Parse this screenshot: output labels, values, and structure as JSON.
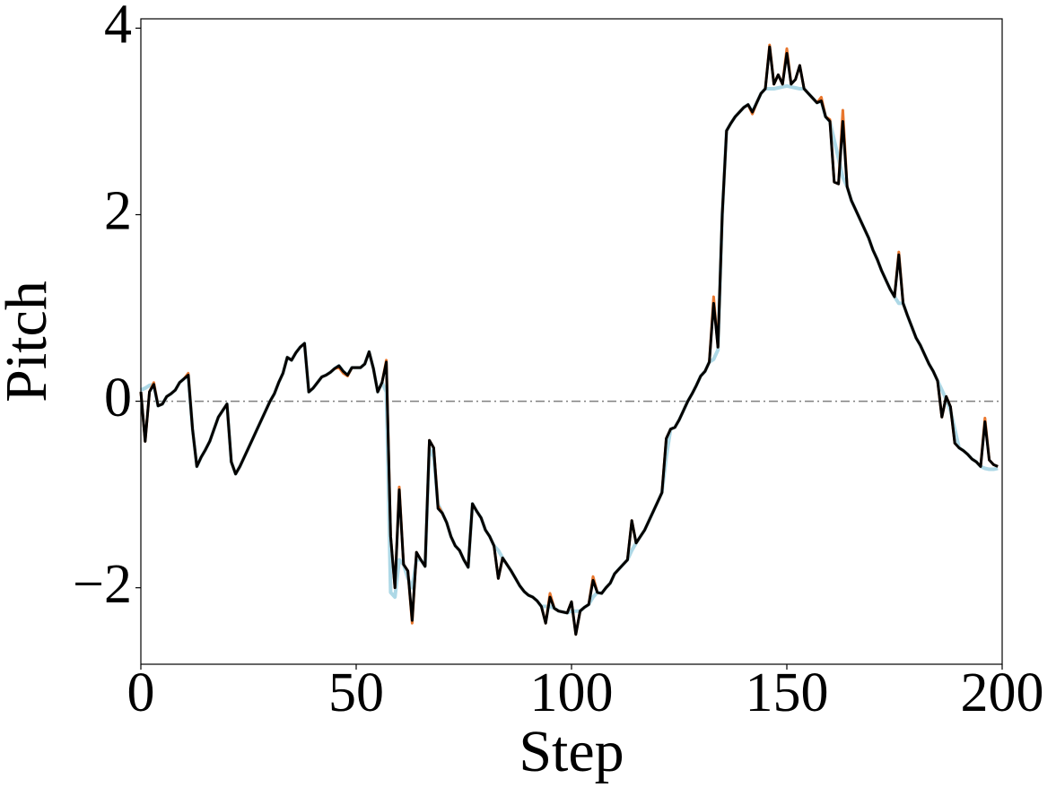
{
  "chart_data": {
    "type": "line",
    "xlabel": "Step",
    "ylabel": "Pitch",
    "x": [
      0,
      1,
      2,
      3,
      4,
      5,
      6,
      7,
      8,
      9,
      10,
      11,
      12,
      13,
      14,
      15,
      16,
      17,
      18,
      19,
      20,
      21,
      22,
      23,
      24,
      25,
      26,
      27,
      28,
      29,
      30,
      31,
      32,
      33,
      34,
      35,
      36,
      37,
      38,
      39,
      40,
      41,
      42,
      43,
      44,
      45,
      46,
      47,
      48,
      49,
      50,
      51,
      52,
      53,
      54,
      55,
      56,
      57,
      58,
      59,
      60,
      61,
      62,
      63,
      64,
      65,
      66,
      67,
      68,
      69,
      70,
      71,
      72,
      73,
      74,
      75,
      76,
      77,
      78,
      79,
      80,
      81,
      82,
      83,
      84,
      85,
      86,
      87,
      88,
      89,
      90,
      91,
      92,
      93,
      94,
      95,
      96,
      97,
      98,
      99,
      100,
      101,
      102,
      103,
      104,
      105,
      106,
      107,
      108,
      109,
      110,
      111,
      112,
      113,
      114,
      115,
      116,
      117,
      118,
      119,
      120,
      121,
      122,
      123,
      124,
      125,
      126,
      127,
      128,
      129,
      130,
      131,
      132,
      133,
      134,
      135,
      136,
      137,
      138,
      139,
      140,
      141,
      142,
      143,
      144,
      145,
      146,
      147,
      148,
      149,
      150,
      151,
      152,
      153,
      154,
      155,
      156,
      157,
      158,
      159,
      160,
      161,
      162,
      163,
      164,
      165,
      166,
      167,
      168,
      169,
      170,
      171,
      172,
      173,
      174,
      175,
      176,
      177,
      178,
      179,
      180,
      181,
      182,
      183,
      184,
      185,
      186,
      187,
      188,
      189,
      190,
      191,
      192,
      193,
      194,
      195,
      196,
      197,
      198,
      199
    ],
    "series": [
      {
        "color": "#add8e6",
        "values": [
          0.12,
          0.14,
          0.17,
          0.18,
          -0.05,
          -0.03,
          0.05,
          0.08,
          0.12,
          0.2,
          0.24,
          0.28,
          -0.3,
          -0.7,
          -0.6,
          -0.52,
          -0.43,
          -0.3,
          -0.17,
          -0.1,
          -0.03,
          -0.65,
          -0.78,
          -0.7,
          -0.6,
          -0.5,
          -0.4,
          -0.3,
          -0.2,
          -0.1,
          0.0,
          0.08,
          0.2,
          0.3,
          0.47,
          0.44,
          0.52,
          0.58,
          0.62,
          0.1,
          0.14,
          0.2,
          0.26,
          0.28,
          0.31,
          0.35,
          0.38,
          0.32,
          0.28,
          0.36,
          0.36,
          0.36,
          0.4,
          0.53,
          0.35,
          0.1,
          0.2,
          0.1,
          -2.05,
          -2.1,
          -1.7,
          -1.75,
          -1.9,
          -2.0,
          -1.7,
          -1.7,
          -1.77,
          -0.5,
          -0.6,
          -1.1,
          -1.2,
          -1.3,
          -1.45,
          -1.55,
          -1.6,
          -1.7,
          -1.78,
          -1.1,
          -1.18,
          -1.25,
          -1.38,
          -1.45,
          -1.55,
          -1.6,
          -1.68,
          -1.75,
          -1.82,
          -1.9,
          -1.98,
          -2.04,
          -2.08,
          -2.1,
          -2.14,
          -2.2,
          -2.2,
          -2.2,
          -2.22,
          -2.25,
          -2.26,
          -2.27,
          -2.25,
          -2.25,
          -2.25,
          -2.21,
          -2.18,
          -2.1,
          -2.05,
          -2.06,
          -2.0,
          -1.95,
          -1.85,
          -1.8,
          -1.75,
          -1.7,
          -1.6,
          -1.52,
          -1.45,
          -1.38,
          -1.28,
          -1.18,
          -1.08,
          -0.98,
          -0.6,
          -0.3,
          -0.28,
          -0.2,
          -0.1,
          0.0,
          0.08,
          0.17,
          0.27,
          0.32,
          0.42,
          0.45,
          0.55,
          2.0,
          2.9,
          2.98,
          3.05,
          3.1,
          3.15,
          3.18,
          3.1,
          3.2,
          3.3,
          3.35,
          3.35,
          3.35,
          3.36,
          3.37,
          3.38,
          3.37,
          3.36,
          3.35,
          3.35,
          3.3,
          3.25,
          3.2,
          3.22,
          3.05,
          3.0,
          2.8,
          2.6,
          2.4,
          2.3,
          2.15,
          2.05,
          1.95,
          1.85,
          1.75,
          1.62,
          1.52,
          1.4,
          1.3,
          1.2,
          1.12,
          1.05,
          1.05,
          0.92,
          0.8,
          0.68,
          0.6,
          0.5,
          0.4,
          0.32,
          0.22,
          0.12,
          0.02,
          -0.1,
          -0.3,
          -0.5,
          -0.53,
          -0.57,
          -0.62,
          -0.65,
          -0.7,
          -0.72,
          -0.73,
          -0.73,
          -0.72
        ]
      },
      {
        "color": "#e8762d",
        "values": [
          0.1,
          -0.43,
          0.1,
          0.2,
          -0.05,
          -0.03,
          0.05,
          0.08,
          0.12,
          0.2,
          0.24,
          0.3,
          -0.3,
          -0.7,
          -0.6,
          -0.52,
          -0.43,
          -0.3,
          -0.17,
          -0.1,
          -0.03,
          -0.65,
          -0.78,
          -0.7,
          -0.6,
          -0.5,
          -0.4,
          -0.3,
          -0.2,
          -0.1,
          0.0,
          0.08,
          0.2,
          0.3,
          0.47,
          0.44,
          0.52,
          0.58,
          0.62,
          0.1,
          0.14,
          0.2,
          0.26,
          0.28,
          0.31,
          0.35,
          0.36,
          0.3,
          0.27,
          0.36,
          0.36,
          0.36,
          0.4,
          0.53,
          0.35,
          0.1,
          0.2,
          0.44,
          -1.45,
          -2.0,
          -0.92,
          -1.75,
          -1.82,
          -2.38,
          -1.62,
          -1.7,
          -1.77,
          -0.42,
          -0.5,
          -1.12,
          -1.2,
          -1.3,
          -1.45,
          -1.55,
          -1.6,
          -1.7,
          -1.78,
          -1.1,
          -1.18,
          -1.25,
          -1.38,
          -1.45,
          -1.55,
          -1.9,
          -1.68,
          -1.75,
          -1.82,
          -1.9,
          -1.98,
          -2.04,
          -2.08,
          -2.1,
          -2.14,
          -2.2,
          -2.38,
          -2.06,
          -2.22,
          -2.25,
          -2.26,
          -2.27,
          -2.15,
          -2.5,
          -2.25,
          -2.21,
          -2.18,
          -1.88,
          -2.05,
          -2.06,
          -2.0,
          -1.95,
          -1.85,
          -1.8,
          -1.75,
          -1.7,
          -1.28,
          -1.52,
          -1.45,
          -1.38,
          -1.28,
          -1.18,
          -1.08,
          -0.98,
          -0.4,
          -0.3,
          -0.28,
          -0.2,
          -0.1,
          0.0,
          0.08,
          0.17,
          0.27,
          0.32,
          0.42,
          1.12,
          0.58,
          2.0,
          2.9,
          2.98,
          3.05,
          3.1,
          3.15,
          3.18,
          3.08,
          3.2,
          3.3,
          3.35,
          3.82,
          3.4,
          3.5,
          3.4,
          3.78,
          3.4,
          3.45,
          3.6,
          3.35,
          3.3,
          3.25,
          3.2,
          3.26,
          3.05,
          3.02,
          2.35,
          2.33,
          3.12,
          2.3,
          2.15,
          2.05,
          1.95,
          1.85,
          1.75,
          1.62,
          1.52,
          1.4,
          1.3,
          1.2,
          1.12,
          1.6,
          1.05,
          0.92,
          0.8,
          0.68,
          0.6,
          0.5,
          0.4,
          0.32,
          0.22,
          -0.17,
          0.05,
          -0.06,
          -0.45,
          -0.5,
          -0.53,
          -0.57,
          -0.62,
          -0.65,
          -0.7,
          -0.18,
          -0.63,
          -0.68,
          -0.7
        ]
      },
      {
        "color": "#000000",
        "values": [
          0.1,
          -0.43,
          0.1,
          0.18,
          -0.05,
          -0.03,
          0.05,
          0.08,
          0.12,
          0.2,
          0.24,
          0.28,
          -0.3,
          -0.7,
          -0.6,
          -0.52,
          -0.43,
          -0.3,
          -0.17,
          -0.1,
          -0.03,
          -0.65,
          -0.78,
          -0.7,
          -0.6,
          -0.5,
          -0.4,
          -0.3,
          -0.2,
          -0.1,
          0.0,
          0.08,
          0.2,
          0.3,
          0.47,
          0.44,
          0.52,
          0.58,
          0.62,
          0.1,
          0.14,
          0.2,
          0.26,
          0.28,
          0.31,
          0.35,
          0.38,
          0.32,
          0.28,
          0.36,
          0.36,
          0.36,
          0.4,
          0.53,
          0.35,
          0.1,
          0.2,
          0.42,
          -1.45,
          -2.0,
          -0.95,
          -1.75,
          -1.82,
          -2.35,
          -1.62,
          -1.7,
          -1.77,
          -0.42,
          -0.5,
          -1.15,
          -1.2,
          -1.3,
          -1.45,
          -1.55,
          -1.6,
          -1.7,
          -1.78,
          -1.1,
          -1.18,
          -1.25,
          -1.38,
          -1.45,
          -1.55,
          -1.9,
          -1.68,
          -1.75,
          -1.82,
          -1.9,
          -1.98,
          -2.04,
          -2.08,
          -2.1,
          -2.14,
          -2.2,
          -2.38,
          -2.1,
          -2.22,
          -2.25,
          -2.26,
          -2.27,
          -2.15,
          -2.5,
          -2.25,
          -2.21,
          -2.18,
          -1.92,
          -2.05,
          -2.06,
          -2.0,
          -1.95,
          -1.85,
          -1.8,
          -1.75,
          -1.7,
          -1.28,
          -1.52,
          -1.45,
          -1.38,
          -1.28,
          -1.18,
          -1.08,
          -0.98,
          -0.4,
          -0.3,
          -0.28,
          -0.2,
          -0.1,
          0.0,
          0.08,
          0.17,
          0.27,
          0.32,
          0.42,
          1.05,
          0.58,
          2.0,
          2.9,
          2.98,
          3.05,
          3.1,
          3.15,
          3.18,
          3.1,
          3.2,
          3.3,
          3.35,
          3.8,
          3.4,
          3.5,
          3.4,
          3.73,
          3.4,
          3.45,
          3.6,
          3.35,
          3.3,
          3.25,
          3.2,
          3.22,
          3.05,
          3.0,
          2.35,
          2.33,
          3.0,
          2.3,
          2.15,
          2.05,
          1.95,
          1.85,
          1.75,
          1.62,
          1.52,
          1.4,
          1.3,
          1.2,
          1.12,
          1.57,
          1.05,
          0.92,
          0.8,
          0.68,
          0.6,
          0.5,
          0.4,
          0.32,
          0.22,
          -0.17,
          0.05,
          -0.06,
          -0.45,
          -0.5,
          -0.53,
          -0.57,
          -0.62,
          -0.65,
          -0.7,
          -0.22,
          -0.63,
          -0.68,
          -0.7
        ]
      }
    ],
    "hline": 0,
    "xlim": [
      0,
      200
    ],
    "xticks": [
      0,
      50,
      100,
      150,
      200
    ],
    "ylim": [
      -2.82,
      4.1
    ],
    "yticks": [
      {
        "value": -2,
        "label": "−2"
      },
      0,
      2,
      4
    ],
    "grid": false
  }
}
